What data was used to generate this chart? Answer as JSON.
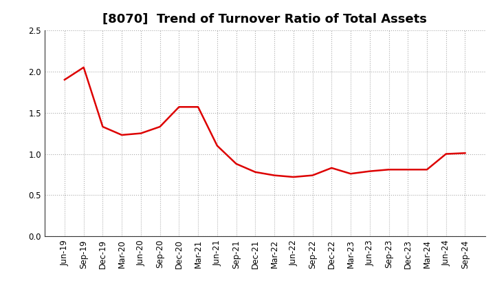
{
  "title": "[8070]  Trend of Turnover Ratio of Total Assets",
  "x_labels": [
    "Jun-19",
    "Sep-19",
    "Dec-19",
    "Mar-20",
    "Jun-20",
    "Sep-20",
    "Dec-20",
    "Mar-21",
    "Jun-21",
    "Sep-21",
    "Dec-21",
    "Mar-22",
    "Jun-22",
    "Sep-22",
    "Dec-22",
    "Mar-23",
    "Jun-23",
    "Sep-23",
    "Dec-23",
    "Mar-24",
    "Jun-24",
    "Sep-24"
  ],
  "y_values": [
    1.9,
    2.05,
    1.33,
    1.23,
    1.25,
    1.33,
    1.57,
    1.57,
    1.1,
    0.88,
    0.78,
    0.74,
    0.72,
    0.74,
    0.83,
    0.76,
    0.79,
    0.81,
    0.81,
    0.81,
    1.0,
    1.01
  ],
  "line_color": "#dd0000",
  "line_width": 1.8,
  "ylim": [
    0.0,
    2.5
  ],
  "yticks": [
    0.0,
    0.5,
    1.0,
    1.5,
    2.0,
    2.5
  ],
  "grid_color": "#aaaaaa",
  "background_color": "#ffffff",
  "title_fontsize": 13,
  "tick_fontsize": 8.5
}
